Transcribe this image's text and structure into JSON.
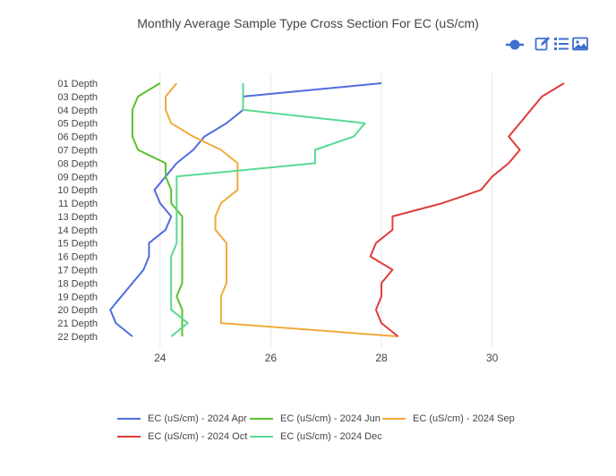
{
  "chart_data": {
    "type": "line",
    "title": "Monthly Average Sample Type Cross Section For EC (uS/cm)",
    "xlabel": "",
    "ylabel": "",
    "xlim": [
      23.0,
      31.3
    ],
    "x_ticks": [
      24,
      26,
      28,
      30
    ],
    "x_tick_labels": [
      "24",
      "26",
      "28",
      "30"
    ],
    "categories": [
      "01 Depth",
      "03 Depth",
      "04 Depth",
      "05 Depth",
      "06 Depth",
      "07 Depth",
      "08 Depth",
      "09 Depth",
      "10 Depth",
      "11 Depth",
      "13 Depth",
      "14 Depth",
      "15 Depth",
      "16 Depth",
      "17 Depth",
      "18 Depth",
      "19 Depth",
      "20 Depth",
      "21 Depth",
      "22 Depth"
    ],
    "grid": "vertical",
    "legend_position": "bottom",
    "series": [
      {
        "name": "EC (uS/cm) - 2024 Apr",
        "color": "#4F6DDE",
        "x": [
          28.0,
          25.5,
          25.5,
          25.2,
          24.8,
          24.6,
          24.3,
          24.1,
          23.9,
          24.0,
          24.2,
          24.1,
          23.8,
          23.8,
          23.7,
          23.5,
          23.3,
          23.1,
          23.2,
          23.5
        ]
      },
      {
        "name": "EC (uS/cm) - 2024 Jun",
        "color": "#5BBF2C",
        "x": [
          24.0,
          23.6,
          23.5,
          23.5,
          23.5,
          23.6,
          24.1,
          24.1,
          24.2,
          24.2,
          24.4,
          24.4,
          24.4,
          24.4,
          24.4,
          24.4,
          24.3,
          24.4,
          24.4,
          24.4
        ]
      },
      {
        "name": "EC (uS/cm) - 2024 Sep",
        "color": "#F2A93B",
        "x": [
          24.3,
          24.1,
          24.1,
          24.2,
          24.6,
          25.1,
          25.4,
          25.4,
          25.4,
          25.1,
          25.0,
          25.0,
          25.2,
          25.2,
          25.2,
          25.2,
          25.1,
          25.1,
          25.1,
          28.3
        ]
      },
      {
        "name": "EC (uS/cm) - 2024 Oct",
        "color": "#E03C3C",
        "x": [
          31.3,
          30.9,
          30.7,
          30.5,
          30.3,
          30.5,
          30.3,
          30.0,
          29.8,
          29.1,
          28.2,
          28.2,
          27.9,
          27.8,
          28.2,
          28.0,
          28.0,
          27.9,
          28.0,
          28.3
        ]
      },
      {
        "name": "EC (uS/cm) - 2024 Dec",
        "color": "#5AD992",
        "x": [
          25.5,
          25.5,
          25.5,
          27.7,
          27.5,
          26.8,
          26.8,
          24.3,
          24.3,
          24.3,
          24.3,
          24.3,
          24.3,
          24.2,
          24.2,
          24.2,
          24.2,
          24.2,
          24.5,
          24.2
        ]
      }
    ]
  },
  "toolbar": {
    "icons": [
      "add-trace-icon",
      "edit-icon",
      "list-icon",
      "image-icon"
    ],
    "accent_color": "#3D6FD0"
  }
}
